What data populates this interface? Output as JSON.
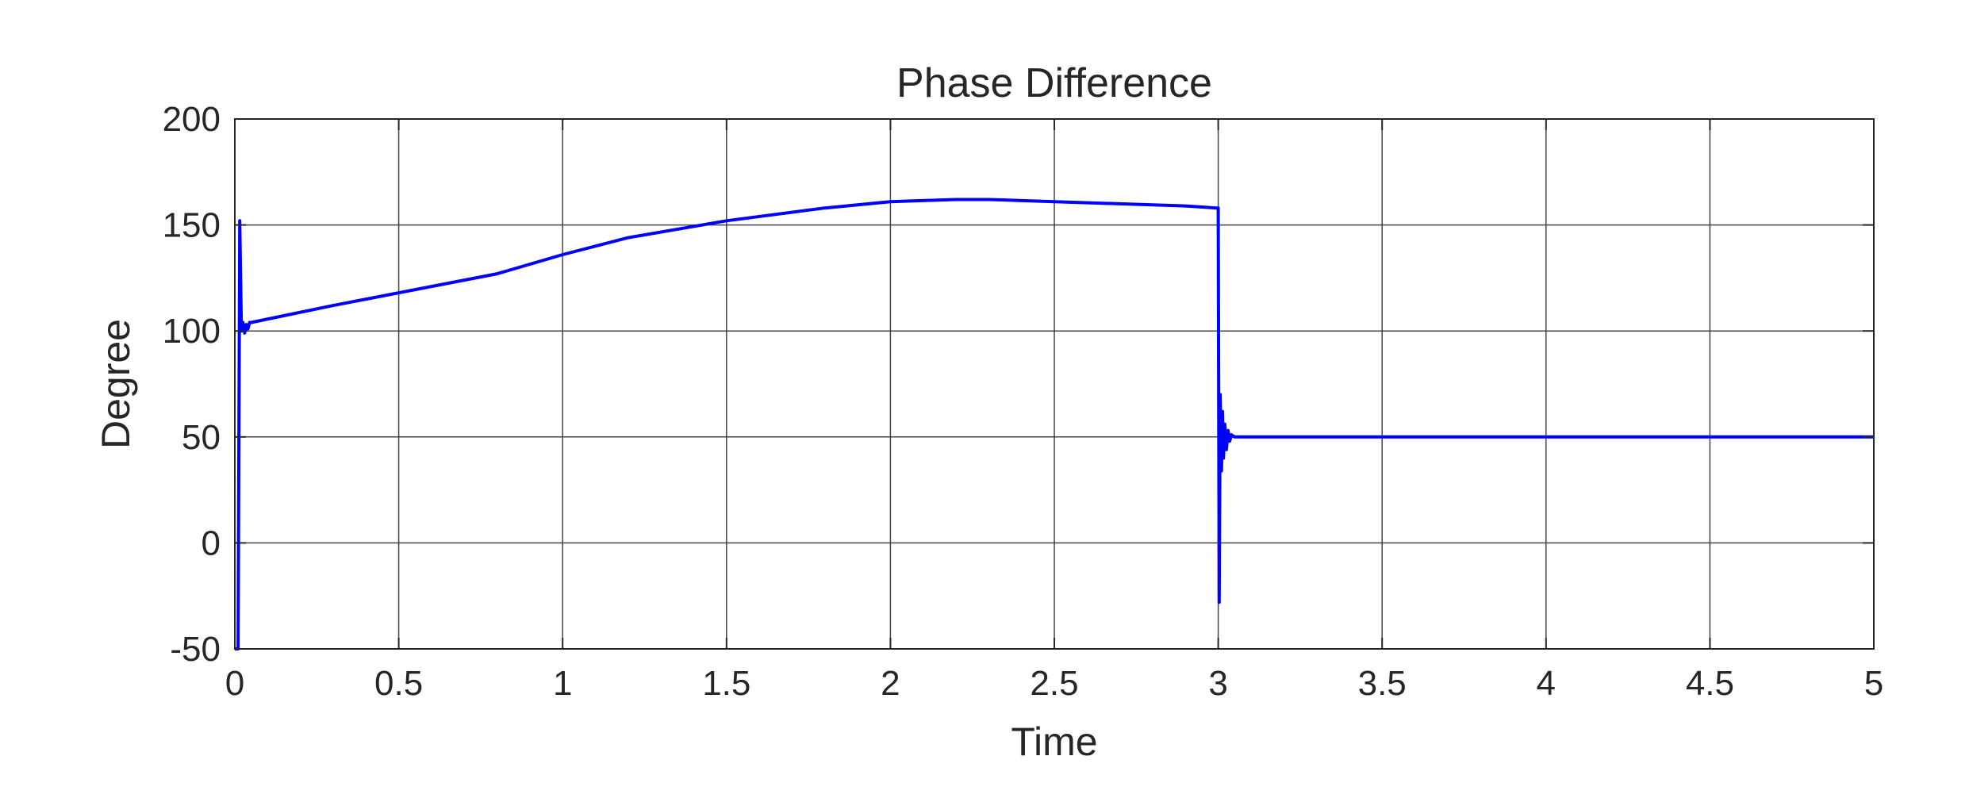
{
  "chart_data": {
    "type": "line",
    "title": "Phase Difference",
    "xlabel": "Time",
    "ylabel": "Degree",
    "xlim": [
      0,
      5
    ],
    "ylim": [
      -50,
      200
    ],
    "xticks": [
      0,
      0.5,
      1,
      1.5,
      2,
      2.5,
      3,
      3.5,
      4,
      4.5,
      5
    ],
    "xtick_labels": [
      "0",
      "0.5",
      "1",
      "1.5",
      "2",
      "2.5",
      "3",
      "3.5",
      "4",
      "4.5",
      "5"
    ],
    "yticks": [
      -50,
      0,
      50,
      100,
      150,
      200
    ],
    "ytick_labels": [
      "-50",
      "0",
      "50",
      "100",
      "150",
      "200"
    ],
    "grid": true,
    "series": [
      {
        "color": "#0000ff",
        "x": [
          0,
          0.01,
          0.015,
          0.02,
          0.025,
          0.03,
          0.035,
          0.04,
          0.045,
          0.05,
          0.3,
          0.5,
          0.8,
          1.0,
          1.2,
          1.5,
          1.8,
          2.0,
          2.2,
          2.3,
          2.5,
          2.7,
          2.9,
          2.995,
          3.0,
          3.003,
          3.006,
          3.01,
          3.013,
          3.016,
          3.02,
          3.025,
          3.03,
          3.035,
          3.04,
          3.05,
          3.2,
          3.5,
          4.0,
          4.5,
          5.0
        ],
        "y": [
          -50,
          -50,
          152,
          100,
          104,
          99,
          103,
          101,
          104,
          104,
          112,
          118,
          127,
          136,
          144,
          152,
          158,
          161,
          162,
          162,
          161,
          160,
          159,
          158,
          158,
          -28,
          70,
          34,
          62,
          40,
          56,
          44,
          53,
          48,
          51,
          50,
          50,
          50,
          50,
          50,
          50
        ]
      }
    ]
  }
}
